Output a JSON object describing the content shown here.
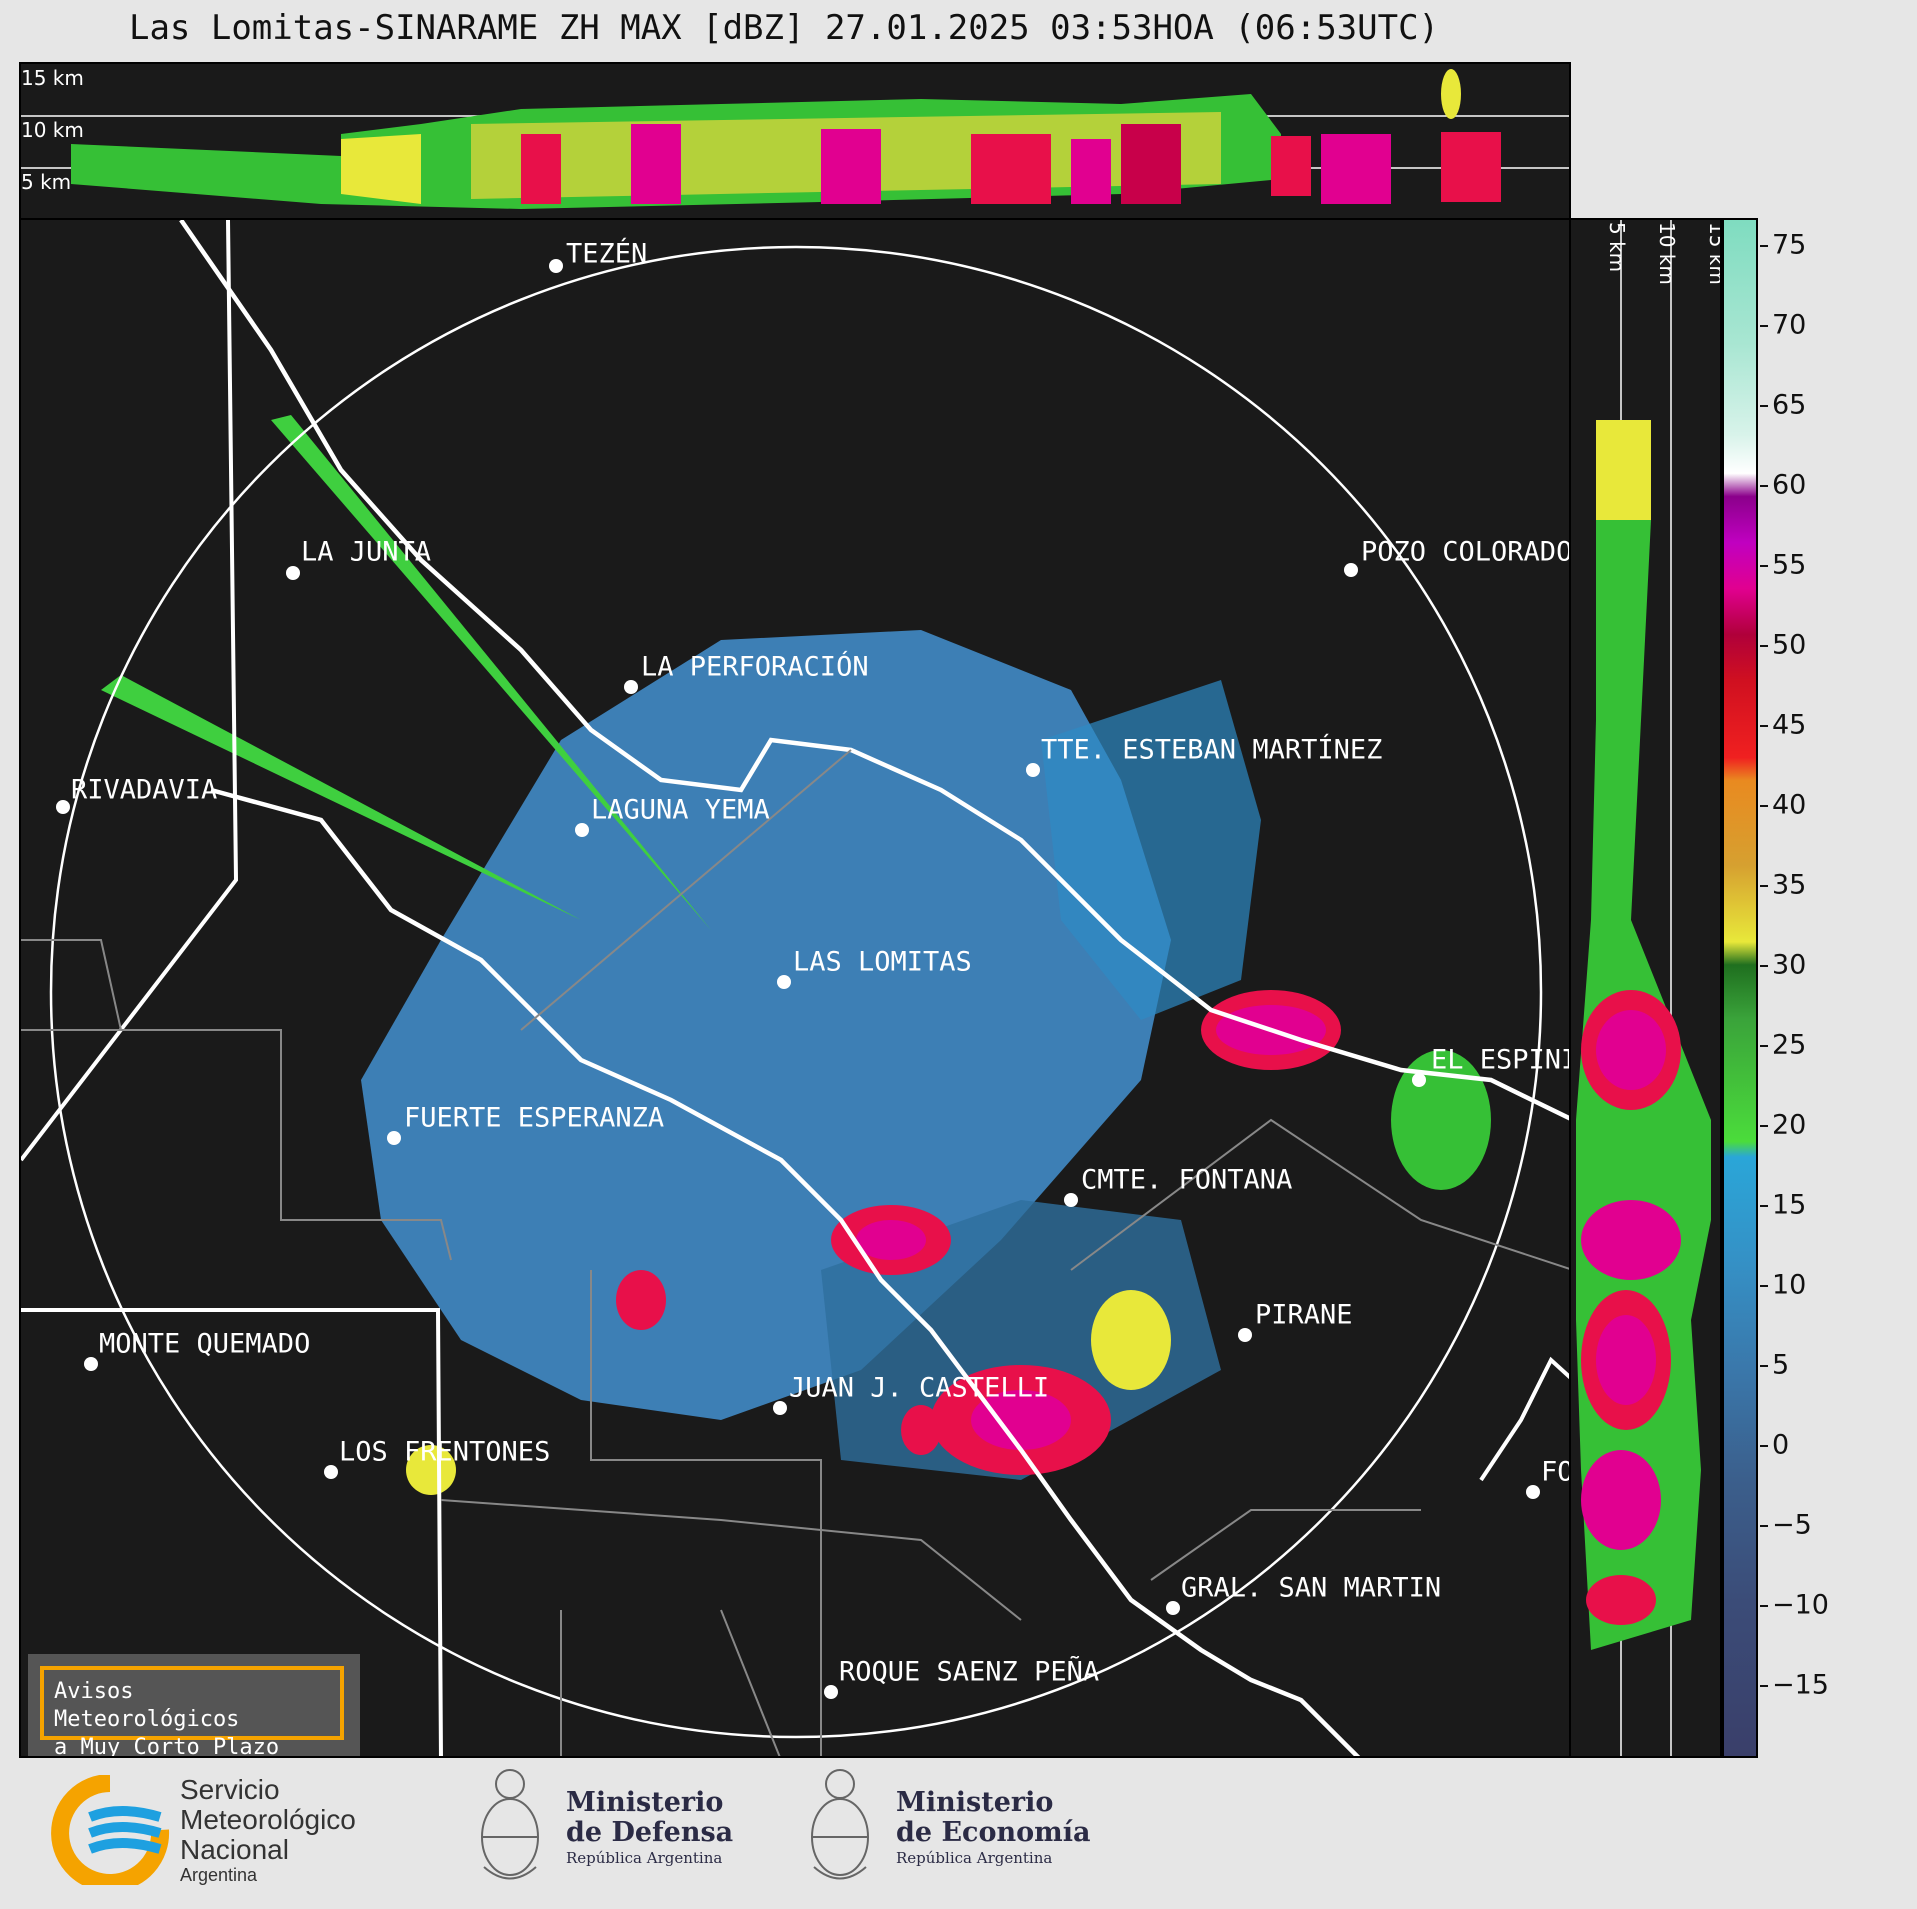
{
  "title": "Las Lomitas-SINARAME ZH MAX [dBZ] 27.01.2025 03:53HOA (06:53UTC)",
  "top_section": {
    "labels": [
      "15 km",
      "10 km",
      "5 km"
    ]
  },
  "right_section": {
    "labels": [
      "5 km",
      "10 km",
      "15 km"
    ]
  },
  "localities": [
    {
      "name": "TEZÉN"
    },
    {
      "name": "LA JUNTA"
    },
    {
      "name": "POZO COLORADO"
    },
    {
      "name": "LA PERFORACIÓN"
    },
    {
      "name": "TTE. ESTEBAN MARTÍNEZ"
    },
    {
      "name": "RIVADAVIA"
    },
    {
      "name": "LAGUNA YEMA"
    },
    {
      "name": "LAS LOMITAS"
    },
    {
      "name": "EL ESPINILLO"
    },
    {
      "name": "FUERTE ESPERANZA"
    },
    {
      "name": "CMTE. FONTANA"
    },
    {
      "name": "PIRANE"
    },
    {
      "name": "MONTE QUEMADO"
    },
    {
      "name": "JUAN J. CASTELLI"
    },
    {
      "name": "LOS FRENTONES"
    },
    {
      "name": "GRAL. SAN MARTIN"
    },
    {
      "name": "ROQUE SAENZ PEÑA"
    },
    {
      "name": "FORMOSA"
    }
  ],
  "colorbar": {
    "ticks": [
      "75",
      "70",
      "65",
      "60",
      "55",
      "50",
      "45",
      "40",
      "35",
      "30",
      "25",
      "20",
      "15",
      "10",
      "5",
      "0",
      "−5",
      "−10",
      "−15"
    ]
  },
  "notice": {
    "line1": "Avisos Meteorológicos",
    "line2": "a Muy Corto Plazo"
  },
  "logos": {
    "smn": {
      "line1": "Servicio",
      "line2": "Meteorológico",
      "line3": "Nacional",
      "line4": "Argentina"
    },
    "defensa": {
      "line1": "Ministerio",
      "line2": "de Defensa",
      "line3": "República Argentina"
    },
    "economia": {
      "line1": "Ministerio",
      "line2": "de Economía",
      "line3": "República Argentina"
    }
  }
}
